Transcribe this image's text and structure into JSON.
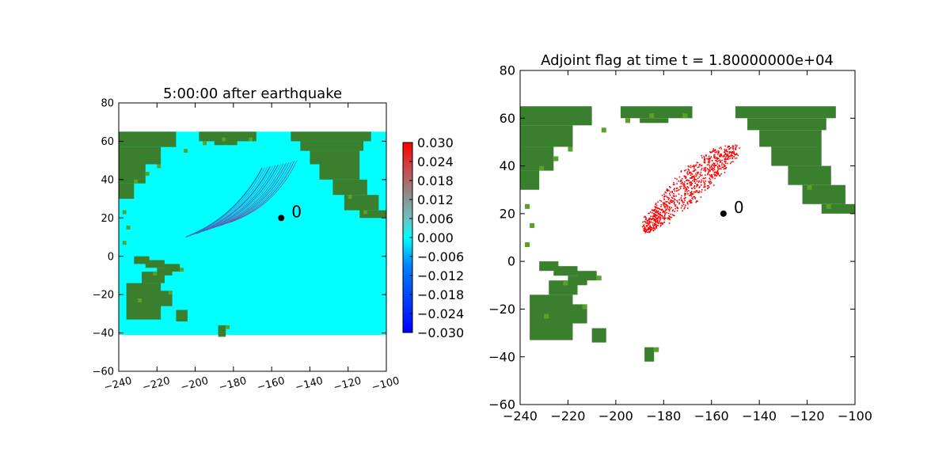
{
  "chart_data": [
    {
      "type": "heatmap",
      "title": "5:00:00 after earthquake",
      "xlabel": "",
      "ylabel": "",
      "xlim": [
        -240,
        -100
      ],
      "ylim": [
        -60,
        80
      ],
      "xticks": [
        -240,
        -220,
        -200,
        -180,
        -160,
        -140,
        -120,
        -100
      ],
      "xtick_labels": [
        "−240",
        "−220",
        "−200",
        "−180",
        "−160",
        "−140",
        "−120",
        "−100"
      ],
      "yticks": [
        -60,
        -40,
        -20,
        0,
        20,
        40,
        60,
        80
      ],
      "ytick_labels": [
        "−60",
        "−40",
        "−20",
        "0",
        "20",
        "40",
        "60",
        "80"
      ],
      "domain": {
        "x": [
          -240,
          -100
        ],
        "y": [
          -41,
          65
        ]
      },
      "ocean_color": "#00ffff",
      "land_color": "#3a7f2e",
      "marker": {
        "x": -155,
        "y": 20,
        "label": "0"
      },
      "colorbar": {
        "colormap": "bwr",
        "range": [
          -0.03,
          0.03
        ],
        "tick_values": [
          0.03,
          0.024,
          0.018,
          0.012,
          0.006,
          0.0,
          -0.006,
          -0.012,
          -0.018,
          -0.024,
          -0.03
        ],
        "tick_labels": [
          "0.030",
          "0.024",
          "0.018",
          "0.012",
          "0.006",
          "0.000",
          "−0.006",
          "−0.012",
          "−0.018",
          "−0.024",
          "−0.030"
        ]
      }
    },
    {
      "type": "heatmap",
      "title": "Adjoint flag at time t = 1.80000000e+04",
      "xlabel": "",
      "ylabel": "",
      "xlim": [
        -240,
        -100
      ],
      "ylim": [
        -60,
        80
      ],
      "xticks": [
        -240,
        -220,
        -200,
        -180,
        -160,
        -140,
        -120,
        -100
      ],
      "xtick_labels": [
        "−240",
        "−220",
        "−200",
        "−180",
        "−160",
        "−140",
        "−120",
        "−100"
      ],
      "yticks": [
        -60,
        -40,
        -20,
        0,
        20,
        40,
        60,
        80
      ],
      "ytick_labels": [
        "−60",
        "−40",
        "−20",
        "0",
        "20",
        "40",
        "60",
        "80"
      ],
      "flag_color": "#ff0000",
      "land_color": "#3a7f2e",
      "marker": {
        "x": -155,
        "y": 20,
        "label": "0"
      }
    }
  ]
}
